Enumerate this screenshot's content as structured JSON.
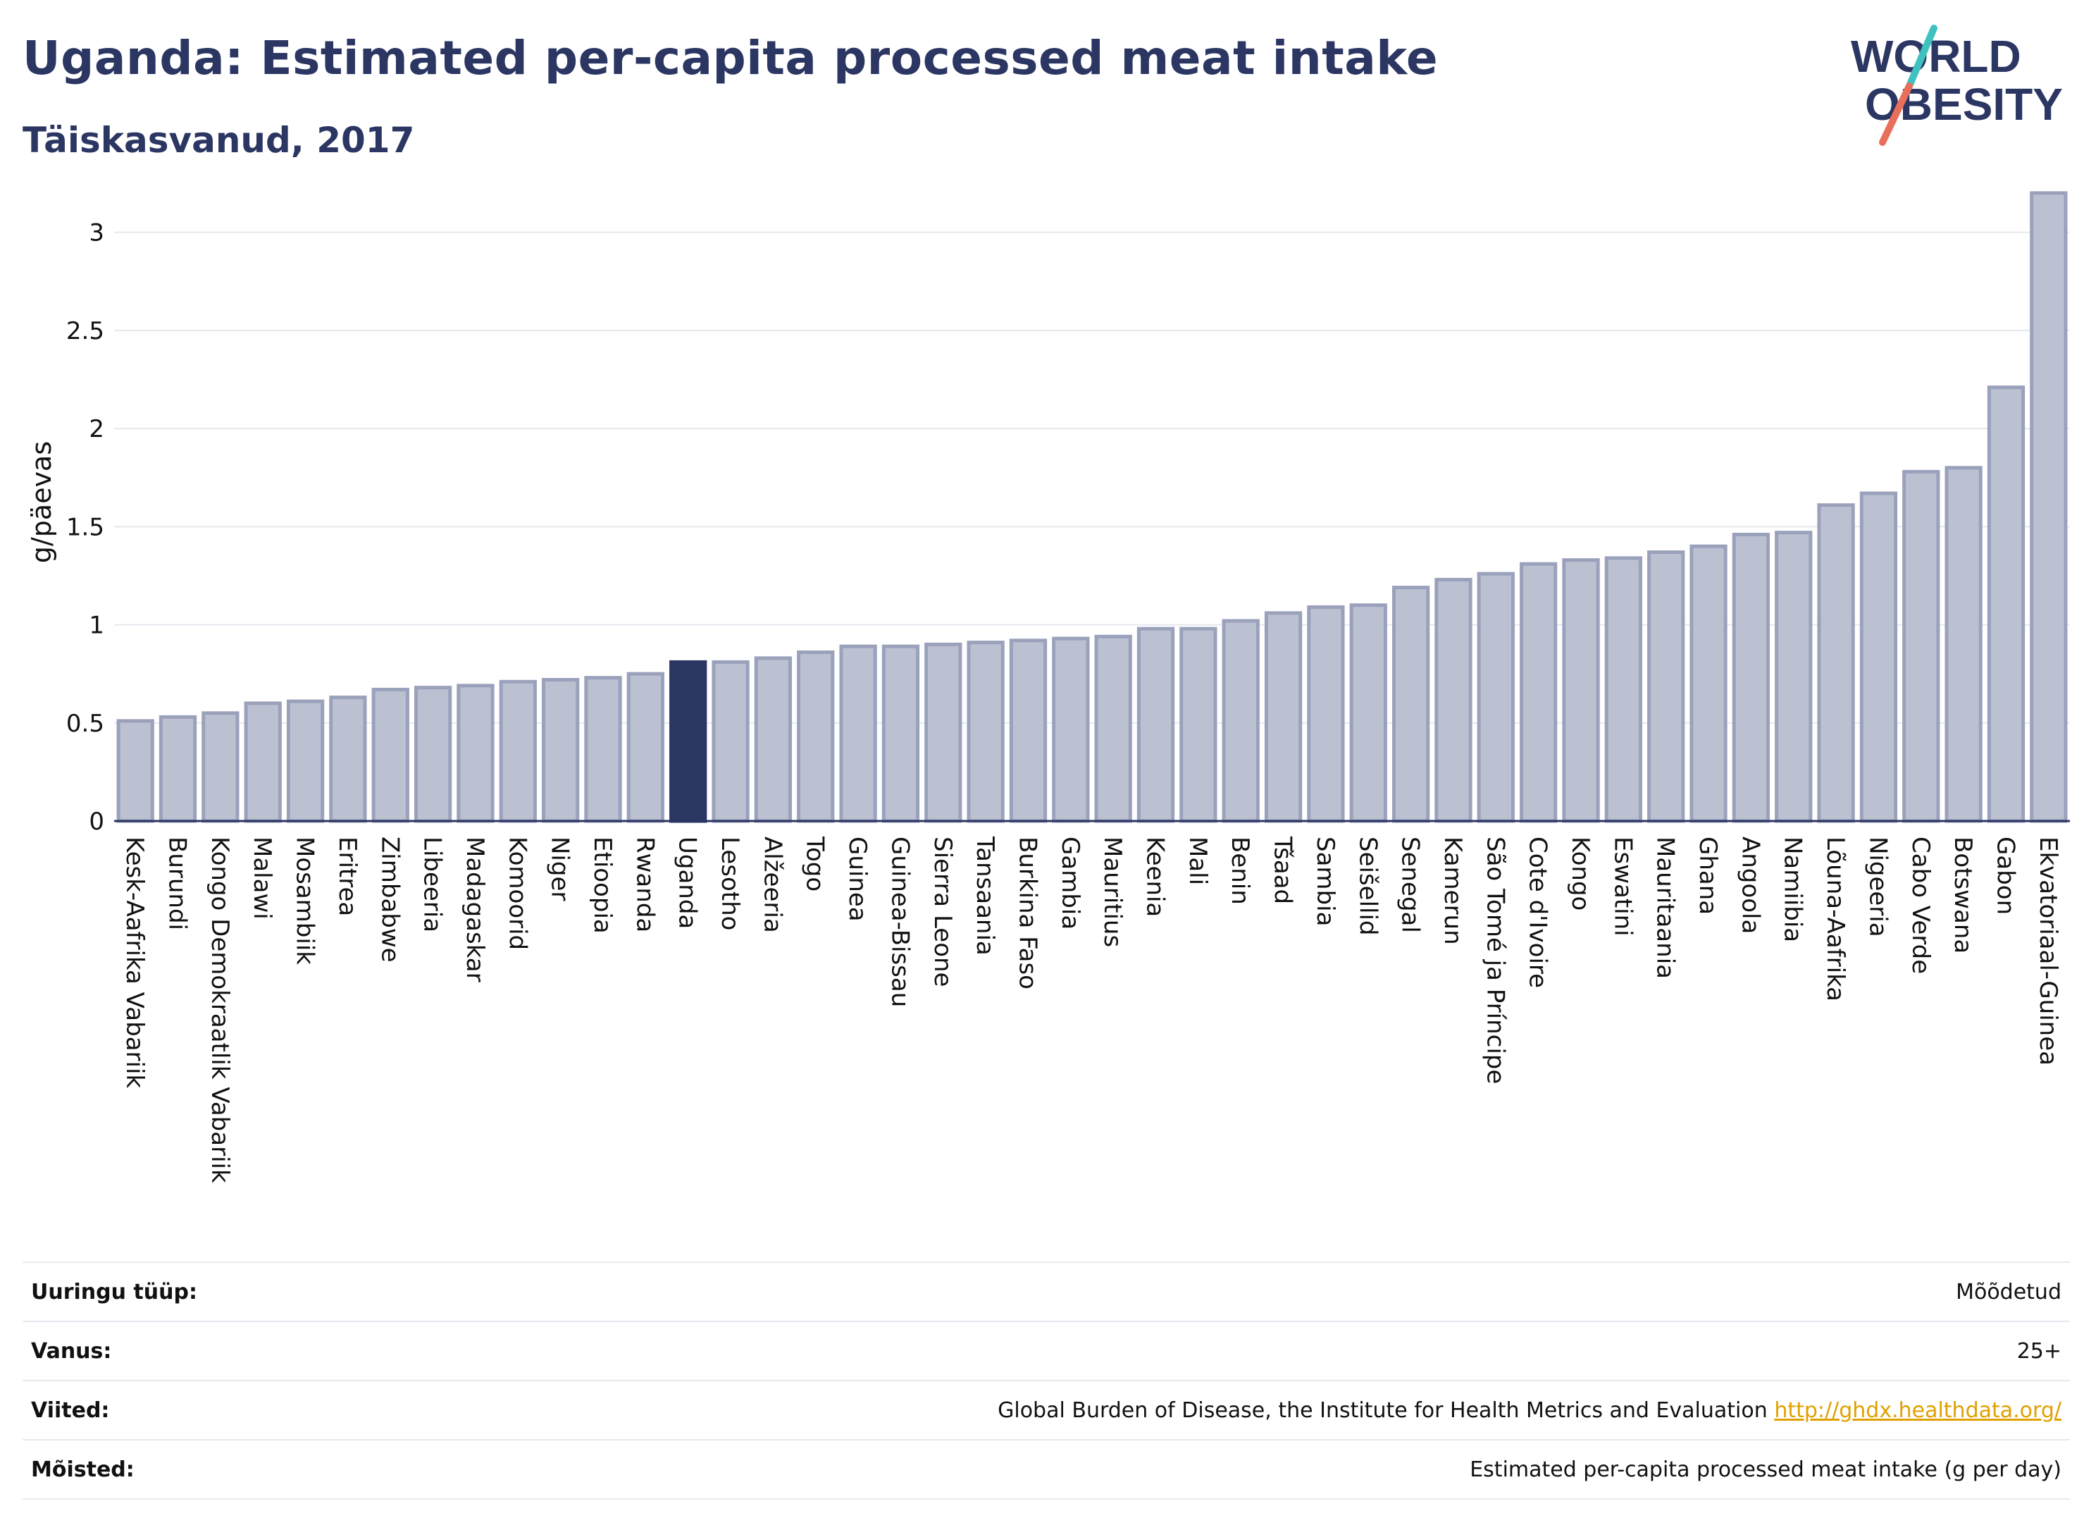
{
  "header": {
    "title": "Uganda: Estimated per-capita processed meat intake",
    "subtitle": "Täiskasvanud, 2017"
  },
  "logo": {
    "line1": "WORLD",
    "line2": "OBESITY",
    "text_color": "#2b3663",
    "slash_colors": [
      "#3fc1c0",
      "#e8705a"
    ]
  },
  "colors": {
    "highlight_bar": "#2b3663",
    "default_bar_fill": "#bcc1d2",
    "default_bar_stroke": "#9aa1bb",
    "grid": "#e6e8ee",
    "axis": "#2b3663"
  },
  "chart_data": {
    "type": "bar",
    "title": "Uganda: Estimated per-capita processed meat intake",
    "subtitle": "Täiskasvanud, 2017",
    "xlabel": "",
    "ylabel": "g/päevas",
    "ylim": [
      0,
      3.25
    ],
    "yticks": [
      0,
      0.5,
      1,
      1.5,
      2,
      2.5,
      3
    ],
    "ytick_labels": [
      "0",
      "0.5",
      "1",
      "1.5",
      "2",
      "2.5",
      "3"
    ],
    "grid": true,
    "highlight": "Uganda",
    "categories": [
      "Kesk-Aafrika Vabariik",
      "Burundi",
      "Kongo Demokraatlik Vabariik",
      "Malawi",
      "Mosambiik",
      "Eritrea",
      "Zimbabwe",
      "Libeeria",
      "Madagaskar",
      "Komoorid",
      "Niger",
      "Etioopia",
      "Rwanda",
      "Uganda",
      "Lesotho",
      "Alžeeria",
      "Togo",
      "Guinea",
      "Guinea-Bissau",
      "Sierra Leone",
      "Tansaania",
      "Burkina Faso",
      "Gambia",
      "Mauritius",
      "Keenia",
      "Mali",
      "Benin",
      "Tšaad",
      "Sambia",
      "Seišellid",
      "Senegal",
      "Kamerun",
      "São Tomé ja Príncipe",
      "Cote d'Ivoire",
      "Kongo",
      "Eswatini",
      "Mauritaania",
      "Ghana",
      "Angoola",
      "Namiibia",
      "Lõuna-Aafrika",
      "Nigeeria",
      "Cabo Verde",
      "Botswana",
      "Gabon",
      "Ekvatoriaal-Guinea"
    ],
    "values": [
      0.51,
      0.53,
      0.55,
      0.6,
      0.61,
      0.63,
      0.67,
      0.68,
      0.69,
      0.71,
      0.72,
      0.73,
      0.75,
      0.81,
      0.81,
      0.83,
      0.86,
      0.89,
      0.89,
      0.9,
      0.91,
      0.92,
      0.93,
      0.94,
      0.98,
      0.98,
      1.02,
      1.06,
      1.09,
      1.1,
      1.19,
      1.23,
      1.26,
      1.31,
      1.33,
      1.34,
      1.37,
      1.4,
      1.46,
      1.47,
      1.61,
      1.67,
      1.78,
      1.8,
      2.21,
      3.2
    ]
  },
  "info": {
    "rows": [
      {
        "label": "Uuringu tüüp:",
        "value": "Mõõdetud"
      },
      {
        "label": "Vanus:",
        "value": "25+"
      },
      {
        "label": "Viited:",
        "value": "Global Burden of Disease, the Institute for Health Metrics and Evaluation",
        "link": "http://ghdx.healthdata.org/"
      },
      {
        "label": "Mõisted:",
        "value": "Estimated per-capita processed meat intake (g per day)"
      }
    ]
  }
}
